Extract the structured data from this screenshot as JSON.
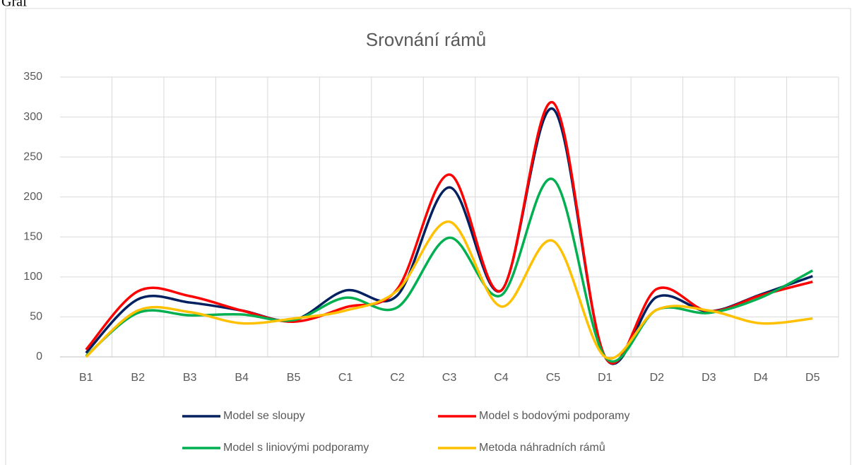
{
  "header": "Graf",
  "chart_data": {
    "type": "line",
    "smooth": true,
    "title": "Srovnání rámů",
    "categories": [
      "B1",
      "B2",
      "B3",
      "B4",
      "B5",
      "C1",
      "C2",
      "C3",
      "C4",
      "C5",
      "D1",
      "D2",
      "D3",
      "D4",
      "D5"
    ],
    "series": [
      {
        "name": "Model se sloupy",
        "color": "#002060",
        "values": [
          5,
          72,
          68,
          58,
          46,
          83,
          77,
          212,
          83,
          310,
          0,
          75,
          57,
          78,
          101
        ]
      },
      {
        "name": "Model s bodovými podporamy",
        "color": "#ff0000",
        "values": [
          9,
          82,
          76,
          58,
          44,
          62,
          85,
          228,
          83,
          318,
          0,
          85,
          57,
          77,
          94
        ]
      },
      {
        "name": "Model s liniovými podporamy",
        "color": "#00b050",
        "values": [
          1,
          55,
          52,
          53,
          46,
          74,
          62,
          149,
          77,
          222,
          0,
          59,
          55,
          74,
          108
        ]
      },
      {
        "name": "Metoda náhradních rámů",
        "color": "#ffc000",
        "values": [
          0,
          58,
          56,
          42,
          48,
          58,
          83,
          169,
          63,
          145,
          0,
          59,
          58,
          42,
          48
        ]
      }
    ],
    "ylim": [
      0,
      350
    ],
    "yticks": [
      0,
      50,
      100,
      150,
      200,
      250,
      300,
      350
    ],
    "grid": true,
    "legend": "bottom"
  }
}
